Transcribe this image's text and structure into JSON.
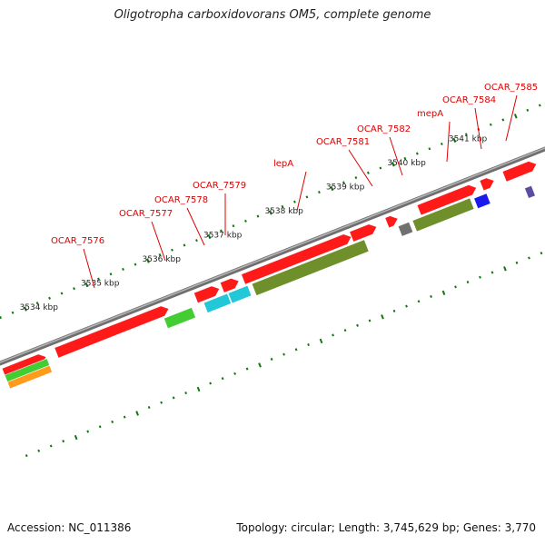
{
  "title": "Oligotropha carboxidovorans OM5, complete genome",
  "footer": {
    "accession": "Accession: NC_011386",
    "summary": "Topology: circular; Length: 3,745,629 bp; Genes: 3,770"
  },
  "colors": {
    "cds": "#ff1a1a",
    "cds_dark": "#cc0000",
    "olive": "#6e8f2a",
    "green": "#44cc33",
    "cyan": "#22c8d8",
    "grey": "#707070",
    "blue": "#1a1aee",
    "orange": "#ff9a1a",
    "purple": "#5a4ea0",
    "tick": "#117711",
    "label_red": "#dd0000",
    "backbone": "#999999"
  },
  "scale_labels": [
    {
      "text": "3534 kbp",
      "kbp": 3534
    },
    {
      "text": "3535 kbp",
      "kbp": 3535
    },
    {
      "text": "3536 kbp",
      "kbp": 3536
    },
    {
      "text": "3537 kbp",
      "kbp": 3537
    },
    {
      "text": "3538 kbp",
      "kbp": 3538
    },
    {
      "text": "3539 kbp",
      "kbp": 3539
    },
    {
      "text": "3540 kbp",
      "kbp": 3540
    },
    {
      "text": "3541 kbp",
      "kbp": 3541
    }
  ],
  "gene_labels": [
    {
      "text": "OCAR_7576"
    },
    {
      "text": "OCAR_7577"
    },
    {
      "text": "OCAR_7578"
    },
    {
      "text": "OCAR_7579"
    },
    {
      "text": "lepA"
    },
    {
      "text": "OCAR_7581"
    },
    {
      "text": "OCAR_7582"
    },
    {
      "text": "mepA"
    },
    {
      "text": "OCAR_7584"
    },
    {
      "text": "OCAR_7585"
    }
  ]
}
